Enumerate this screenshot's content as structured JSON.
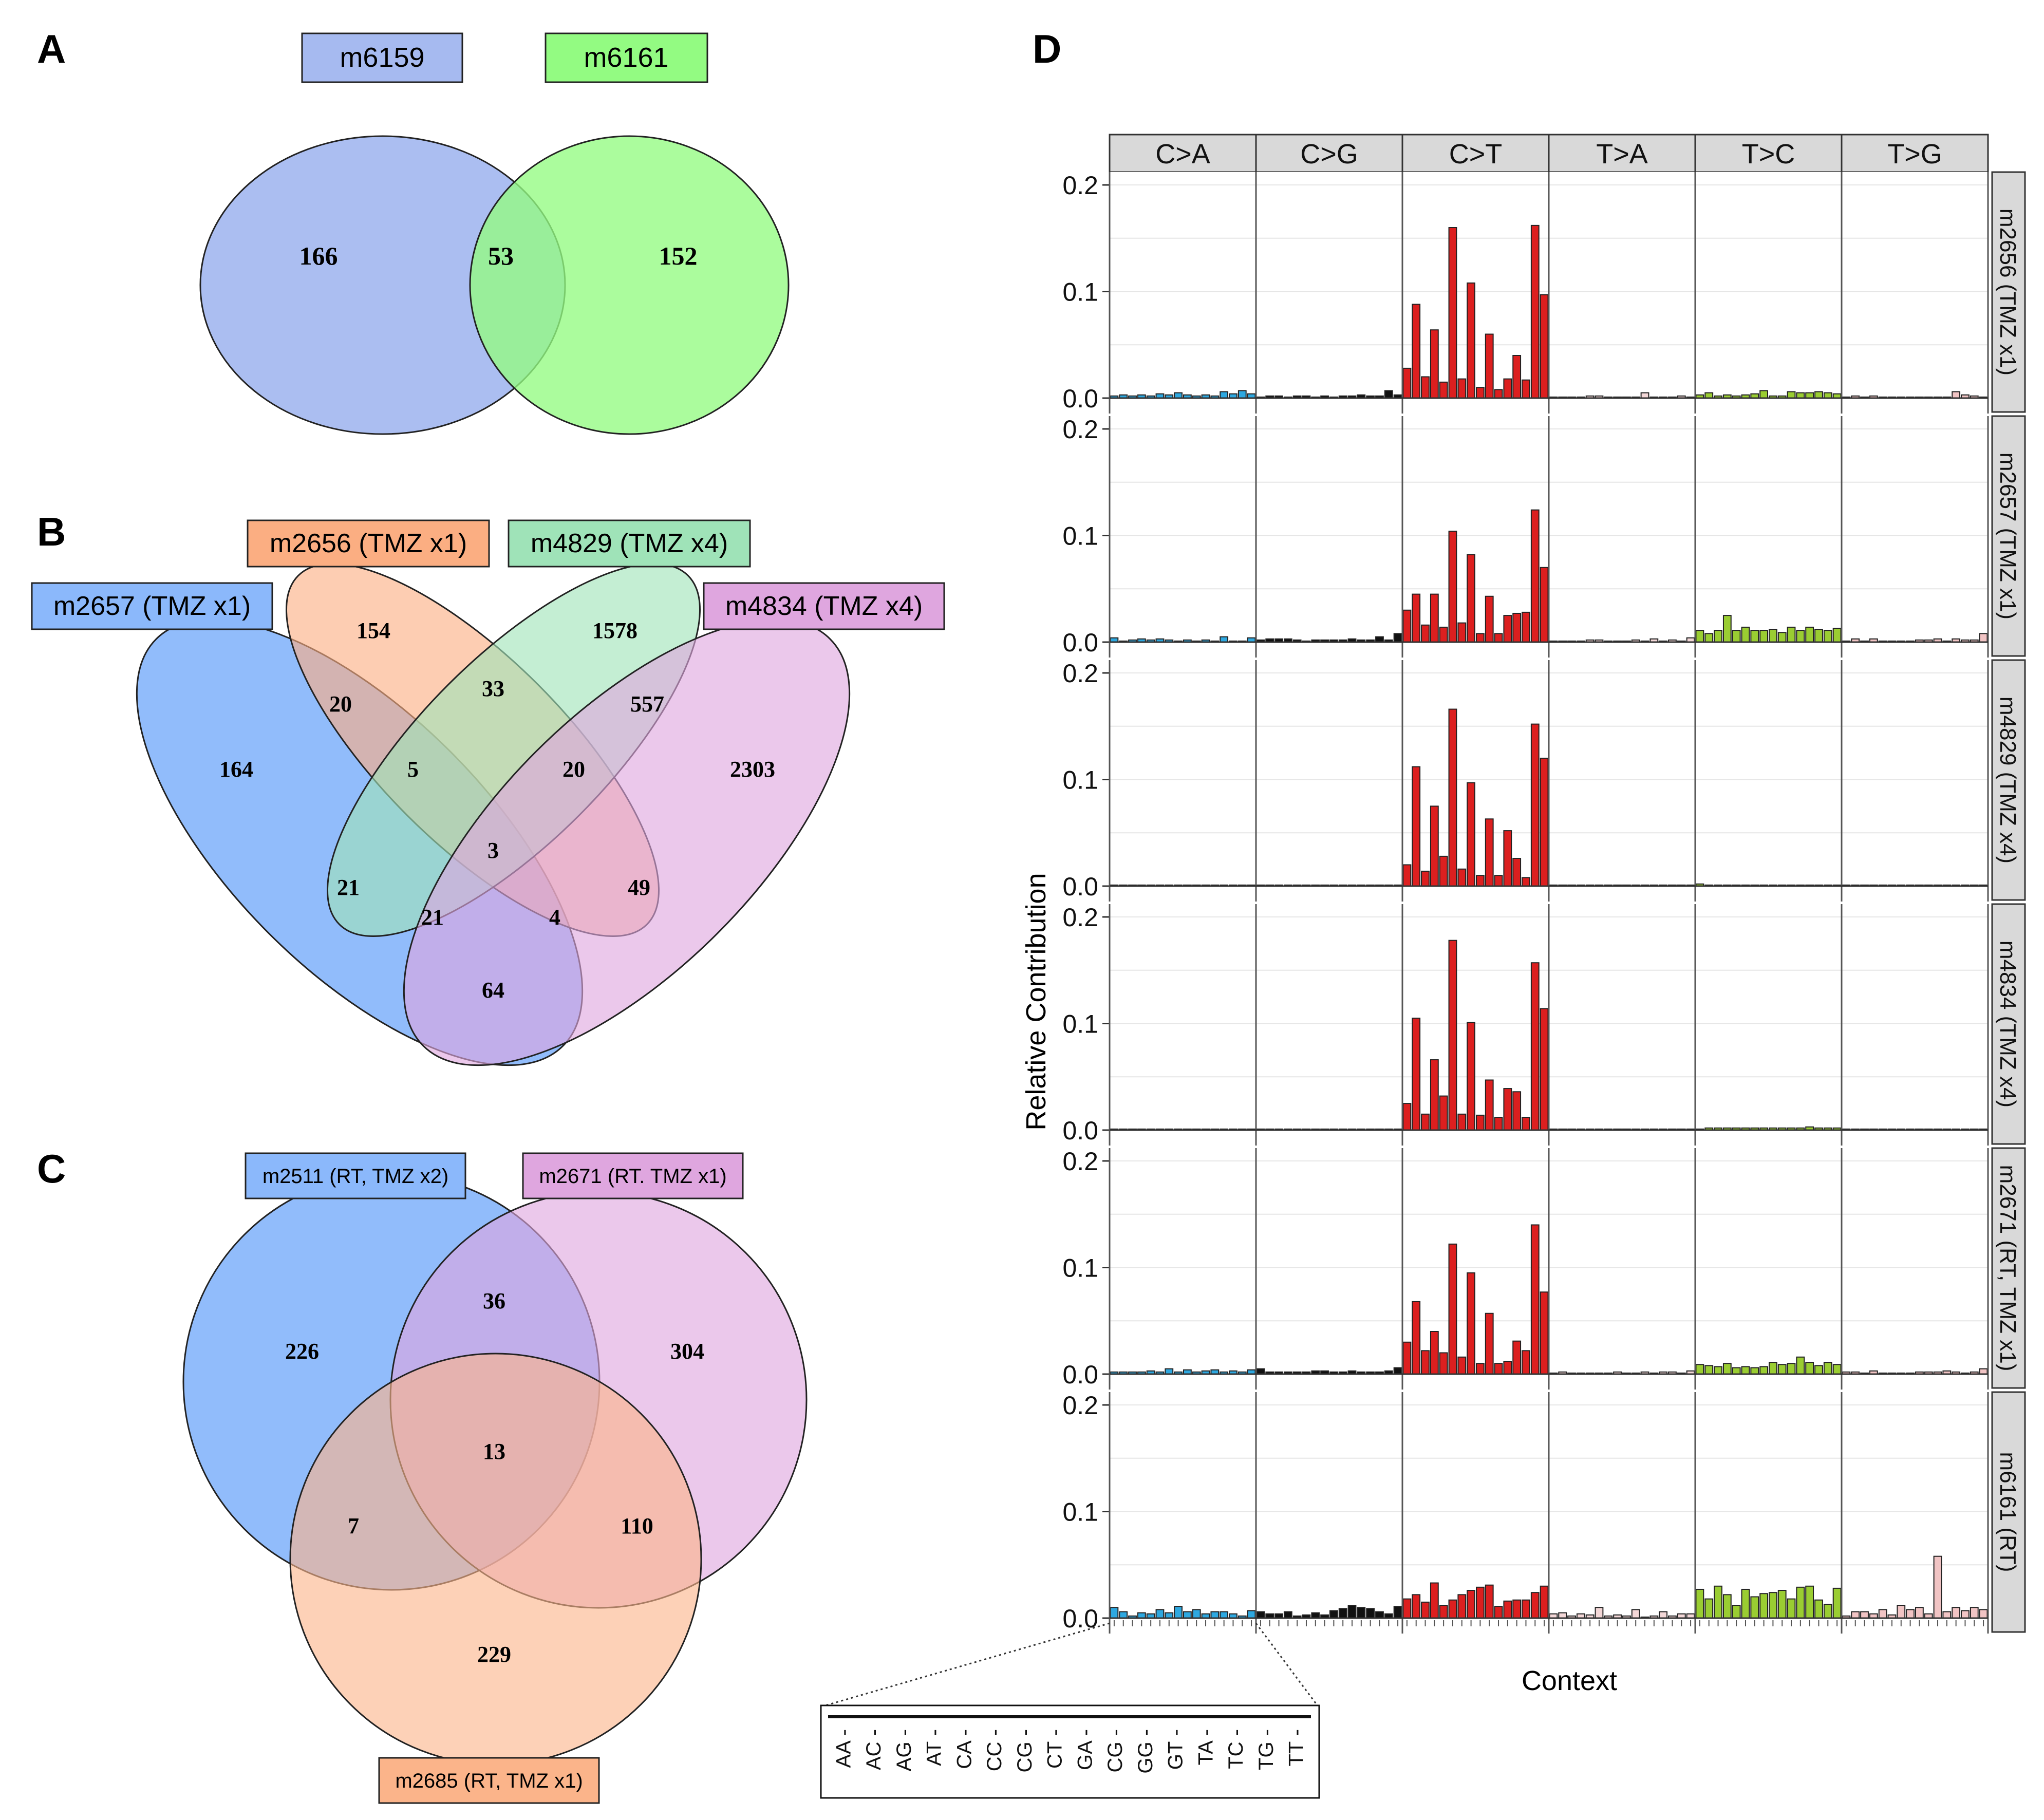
{
  "panel_letters": {
    "a": "A",
    "b": "B",
    "c": "C",
    "d": "D"
  },
  "venn_a": {
    "labels": [
      "m6159",
      "m6161"
    ],
    "colors": [
      "#a6baf0",
      "#93fb82"
    ],
    "counts": {
      "a_only": "166",
      "ab": "53",
      "b_only": "152"
    }
  },
  "venn_b": {
    "labels": [
      "m2657 (TMZ x1)",
      "m2656 (TMZ x1)",
      "m4829 (TMZ x4)",
      "m4834 (TMZ x4)"
    ],
    "colors": [
      "#8bb8fb",
      "#fbae82",
      "#9fe3b8",
      "#dfa6df"
    ],
    "counts": {
      "m2656_only": "154",
      "m4829_only": "1578",
      "m2656_m2657": "20",
      "m2656_m4829": "33",
      "m4829_m4834": "557",
      "m2657_only": "164",
      "m2656_m2657_m4829": "5",
      "m2656_m4829_m4834": "20",
      "m4834_only": "2303",
      "all": "3",
      "m2657_m4829": "21",
      "m2656_m4834": "49",
      "m2657_m4829_m4834": "21",
      "m2657_m2656_m4834": "4",
      "m2657_m4834": "64"
    }
  },
  "venn_c": {
    "labels": [
      "m2511 (RT, TMZ x2)",
      "m2671 (RT. TMZ x1)",
      "m2685 (RT, TMZ x1)"
    ],
    "colors": [
      "#8bb8fb",
      "#dfa6df",
      "#fbb48a"
    ],
    "counts": {
      "a_only": "226",
      "ab": "36",
      "b_only": "304",
      "abc": "13",
      "ac": "7",
      "bc": "110",
      "c_only": "229"
    }
  },
  "chart_data": {
    "type": "bar",
    "title": "",
    "xlabel": "Context",
    "ylabel": "Relative Contribution",
    "ylim": [
      0,
      0.2
    ],
    "yticks": [
      "0.0",
      "0.1",
      "0.2"
    ],
    "mutation_types": [
      "C>A",
      "C>G",
      "C>T",
      "T>A",
      "T>C",
      "T>G"
    ],
    "type_colors": [
      "#2ea8e0",
      "#111111",
      "#dc1f1f",
      "#f3d7d7",
      "#9acd32",
      "#f1c4c4"
    ],
    "contexts": [
      "AA",
      "AC",
      "AG",
      "AT",
      "CA",
      "CC",
      "CG",
      "CT",
      "GA",
      "CG",
      "GG",
      "GT",
      "TA",
      "TC",
      "TG",
      "TT"
    ],
    "samples": [
      {
        "name": "m2656 (TMZ x1)",
        "values": [
          [
            0.002,
            0.003,
            0.002,
            0.003,
            0.002,
            0.004,
            0.003,
            0.005,
            0.003,
            0.002,
            0.003,
            0.002,
            0.006,
            0.004,
            0.007,
            0.004
          ],
          [
            0.001,
            0.002,
            0.002,
            0.001,
            0.002,
            0.002,
            0.001,
            0.002,
            0.001,
            0.002,
            0.002,
            0.003,
            0.002,
            0.002,
            0.007,
            0.003
          ],
          [
            0.028,
            0.088,
            0.02,
            0.064,
            0.015,
            0.16,
            0.018,
            0.108,
            0.01,
            0.06,
            0.008,
            0.018,
            0.04,
            0.017,
            0.162,
            0.097
          ],
          [
            0.001,
            0.001,
            0.001,
            0.001,
            0.002,
            0.002,
            0.001,
            0.001,
            0.001,
            0.001,
            0.005,
            0.001,
            0.001,
            0.001,
            0.002,
            0.001
          ],
          [
            0.003,
            0.005,
            0.002,
            0.003,
            0.002,
            0.003,
            0.004,
            0.007,
            0.002,
            0.002,
            0.006,
            0.005,
            0.005,
            0.006,
            0.005,
            0.004
          ],
          [
            0.001,
            0.002,
            0.001,
            0.002,
            0.001,
            0.001,
            0.001,
            0.001,
            0.001,
            0.001,
            0.001,
            0.001,
            0.006,
            0.003,
            0.002,
            0.001
          ]
        ]
      },
      {
        "name": "m2657 (TMZ x1)",
        "values": [
          [
            0.004,
            0.001,
            0.002,
            0.003,
            0.002,
            0.003,
            0.002,
            0.001,
            0.002,
            0.001,
            0.002,
            0.001,
            0.005,
            0.001,
            0.001,
            0.004
          ],
          [
            0.002,
            0.003,
            0.003,
            0.003,
            0.002,
            0.001,
            0.002,
            0.002,
            0.002,
            0.002,
            0.003,
            0.002,
            0.002,
            0.005,
            0.002,
            0.008
          ],
          [
            0.03,
            0.045,
            0.016,
            0.045,
            0.014,
            0.104,
            0.018,
            0.082,
            0.008,
            0.043,
            0.008,
            0.025,
            0.027,
            0.028,
            0.124,
            0.07
          ],
          [
            0.001,
            0.001,
            0.001,
            0.001,
            0.002,
            0.002,
            0.001,
            0.001,
            0.001,
            0.002,
            0.001,
            0.003,
            0.001,
            0.002,
            0.001,
            0.004
          ],
          [
            0.011,
            0.008,
            0.011,
            0.025,
            0.011,
            0.014,
            0.011,
            0.011,
            0.012,
            0.009,
            0.014,
            0.011,
            0.014,
            0.012,
            0.011,
            0.013
          ],
          [
            0.001,
            0.003,
            0.001,
            0.003,
            0.001,
            0.001,
            0.001,
            0.001,
            0.002,
            0.002,
            0.003,
            0.001,
            0.003,
            0.002,
            0.002,
            0.008
          ]
        ]
      },
      {
        "name": "m4829 (TMZ x4)",
        "values": [
          [
            0.001,
            0.001,
            0.001,
            0.001,
            0.001,
            0.001,
            0.001,
            0.001,
            0.001,
            0.001,
            0.001,
            0.001,
            0.001,
            0.001,
            0.001,
            0.001
          ],
          [
            0.001,
            0.001,
            0.001,
            0.001,
            0.001,
            0.001,
            0.001,
            0.001,
            0.001,
            0.001,
            0.001,
            0.001,
            0.001,
            0.001,
            0.001,
            0.001
          ],
          [
            0.02,
            0.112,
            0.014,
            0.075,
            0.028,
            0.166,
            0.016,
            0.097,
            0.01,
            0.063,
            0.01,
            0.052,
            0.026,
            0.008,
            0.152,
            0.12
          ],
          [
            0.001,
            0.001,
            0.001,
            0.001,
            0.001,
            0.001,
            0.001,
            0.001,
            0.001,
            0.001,
            0.001,
            0.001,
            0.001,
            0.001,
            0.001,
            0.001
          ],
          [
            0.002,
            0.001,
            0.001,
            0.001,
            0.001,
            0.001,
            0.001,
            0.001,
            0.001,
            0.001,
            0.001,
            0.001,
            0.001,
            0.001,
            0.001,
            0.001
          ],
          [
            0.001,
            0.001,
            0.001,
            0.001,
            0.001,
            0.001,
            0.001,
            0.001,
            0.001,
            0.001,
            0.001,
            0.001,
            0.001,
            0.001,
            0.001,
            0.001
          ]
        ]
      },
      {
        "name": "m4834 (TMZ x4)",
        "values": [
          [
            0.001,
            0.001,
            0.001,
            0.001,
            0.001,
            0.001,
            0.001,
            0.001,
            0.001,
            0.001,
            0.001,
            0.001,
            0.001,
            0.001,
            0.001,
            0.001
          ],
          [
            0.001,
            0.001,
            0.001,
            0.001,
            0.001,
            0.001,
            0.001,
            0.001,
            0.001,
            0.001,
            0.001,
            0.001,
            0.001,
            0.001,
            0.001,
            0.001
          ],
          [
            0.025,
            0.105,
            0.015,
            0.066,
            0.032,
            0.178,
            0.015,
            0.101,
            0.014,
            0.047,
            0.012,
            0.039,
            0.036,
            0.012,
            0.157,
            0.114
          ],
          [
            0.001,
            0.001,
            0.001,
            0.001,
            0.001,
            0.001,
            0.001,
            0.001,
            0.001,
            0.001,
            0.001,
            0.001,
            0.001,
            0.001,
            0.001,
            0.001
          ],
          [
            0.001,
            0.002,
            0.002,
            0.002,
            0.002,
            0.002,
            0.002,
            0.002,
            0.002,
            0.002,
            0.002,
            0.002,
            0.003,
            0.002,
            0.002,
            0.002
          ],
          [
            0.001,
            0.001,
            0.001,
            0.001,
            0.001,
            0.001,
            0.001,
            0.001,
            0.001,
            0.001,
            0.001,
            0.001,
            0.001,
            0.001,
            0.001,
            0.001
          ]
        ]
      },
      {
        "name": "m2671 (RT, TMZ x1)",
        "values": [
          [
            0.002,
            0.002,
            0.002,
            0.002,
            0.003,
            0.002,
            0.005,
            0.002,
            0.004,
            0.002,
            0.003,
            0.004,
            0.002,
            0.003,
            0.002,
            0.004
          ],
          [
            0.005,
            0.002,
            0.002,
            0.002,
            0.002,
            0.002,
            0.003,
            0.003,
            0.002,
            0.002,
            0.003,
            0.002,
            0.002,
            0.002,
            0.003,
            0.006
          ],
          [
            0.03,
            0.068,
            0.022,
            0.04,
            0.02,
            0.122,
            0.016,
            0.095,
            0.01,
            0.057,
            0.01,
            0.012,
            0.031,
            0.022,
            0.14,
            0.077
          ],
          [
            0.001,
            0.002,
            0.001,
            0.001,
            0.001,
            0.001,
            0.001,
            0.002,
            0.001,
            0.001,
            0.002,
            0.001,
            0.002,
            0.002,
            0.001,
            0.003
          ],
          [
            0.009,
            0.008,
            0.007,
            0.01,
            0.006,
            0.007,
            0.006,
            0.007,
            0.011,
            0.009,
            0.01,
            0.016,
            0.011,
            0.008,
            0.011,
            0.009
          ],
          [
            0.002,
            0.002,
            0.001,
            0.003,
            0.001,
            0.001,
            0.001,
            0.001,
            0.002,
            0.002,
            0.002,
            0.003,
            0.002,
            0.001,
            0.002,
            0.005
          ]
        ]
      },
      {
        "name": "m6161 (RT)",
        "values": [
          [
            0.01,
            0.006,
            0.002,
            0.005,
            0.004,
            0.008,
            0.005,
            0.011,
            0.006,
            0.008,
            0.004,
            0.006,
            0.006,
            0.004,
            0.002,
            0.007
          ],
          [
            0.006,
            0.004,
            0.004,
            0.006,
            0.002,
            0.003,
            0.005,
            0.003,
            0.007,
            0.009,
            0.012,
            0.01,
            0.009,
            0.006,
            0.004,
            0.011
          ],
          [
            0.018,
            0.022,
            0.015,
            0.033,
            0.012,
            0.017,
            0.022,
            0.026,
            0.029,
            0.031,
            0.011,
            0.016,
            0.017,
            0.017,
            0.024,
            0.03
          ],
          [
            0.004,
            0.005,
            0.002,
            0.004,
            0.003,
            0.01,
            0.002,
            0.003,
            0.002,
            0.008,
            0.001,
            0.002,
            0.006,
            0.002,
            0.004,
            0.004
          ],
          [
            0.027,
            0.018,
            0.03,
            0.022,
            0.012,
            0.027,
            0.02,
            0.023,
            0.024,
            0.026,
            0.018,
            0.029,
            0.03,
            0.017,
            0.013,
            0.028
          ],
          [
            0.002,
            0.006,
            0.006,
            0.004,
            0.008,
            0.003,
            0.012,
            0.008,
            0.01,
            0.004,
            0.058,
            0.006,
            0.01,
            0.007,
            0.01,
            0.008
          ]
        ]
      }
    ]
  }
}
